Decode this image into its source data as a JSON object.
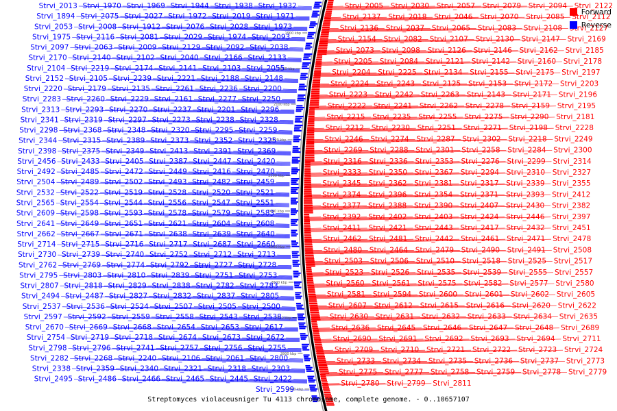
{
  "legend": {
    "forward_label": "Forward",
    "reverse_label": "Reverse",
    "forward_color": "#ff0000",
    "reverse_color": "#0000ff"
  },
  "caption": "Streptomyces violaceusniger Tu 4113 chromosome, complete genome. - 0..10657107",
  "ticks": [
    "1900 kbp",
    "2000 kbp",
    "2100 kbp",
    "2200 kbp",
    "2300 kbp",
    "2400 kbp",
    "2500 kbp",
    "2600 kbp",
    "2700 kbp",
    "2800 kbp",
    "2900 kbp"
  ],
  "forward_genes": [
    "Strvi_2005",
    "Strvi_2030",
    "Strvi_2057",
    "Strvi_2079",
    "Strvi_2094",
    "Strvi_2122",
    "Strvi_2137",
    "Strvi_2018",
    "Strvi_2046",
    "Strvi_2070",
    "Strvi_2085",
    "Strvi_2112",
    "Strvi_2136",
    "Strvi_2037",
    "Strvi_2065",
    "Strvi_2083",
    "Strvi_2108",
    "Strvi_2127",
    "Strvi_2154",
    "Strvi_2082",
    "Strvi_2107",
    "Strvi_2130",
    "Strvi_2147",
    "Strvi_2169",
    "Strvi_2073",
    "Strvi_2098",
    "Strvi_2126",
    "Strvi_2146",
    "Strvi_2162",
    "Strvi_2185",
    "Strvi_2205",
    "Strvi_2084",
    "Strvi_2121",
    "Strvi_2142",
    "Strvi_2160",
    "Strvi_2178",
    "Strvi_2204",
    "Strvi_2225",
    "Strvi_2134",
    "Strvi_2155",
    "Strvi_2175",
    "Strvi_2197",
    "Strvi_2224",
    "Strvi_2243",
    "Strvi_2125",
    "Strvi_2153",
    "Strvi_2172",
    "Strvi_2203",
    "Strvi_2223",
    "Strvi_2242",
    "Strvi_2263",
    "Strvi_2143",
    "Strvi_2171",
    "Strvi_2196",
    "Strvi_2222",
    "Strvi_2241",
    "Strvi_2262",
    "Strvi_2278",
    "Strvi_2159",
    "Strvi_2195",
    "Strvi_2215",
    "Strvi_2235",
    "Strvi_2255",
    "Strvi_2275",
    "Strvi_2290",
    "Strvi_2181",
    "Strvi_2212",
    "Strvi_2230",
    "Strvi_2251",
    "Strvi_2271",
    "Strvi_2198",
    "Strvi_2228",
    "Strvi_2246",
    "Strvi_2274",
    "Strvi_2287",
    "Strvi_2302",
    "Strvi_2218",
    "Strvi_2249",
    "Strvi_2269",
    "Strvi_2288",
    "Strvi_2301",
    "Strvi_2258",
    "Strvi_2284",
    "Strvi_2300",
    "Strvi_2316",
    "Strvi_2336",
    "Strvi_2353",
    "Strvi_2276",
    "Strvi_2299",
    "Strvi_2314",
    "Strvi_2333",
    "Strvi_2350",
    "Strvi_2367",
    "Strvi_2294",
    "Strvi_2310",
    "Strvi_2327",
    "Strvi_2345",
    "Strvi_2362",
    "Strvi_2381",
    "Strvi_2317",
    "Strvi_2339",
    "Strvi_2355",
    "Strvi_2374",
    "Strvi_2396",
    "Strvi_2354",
    "Strvi_2371",
    "Strvi_2393",
    "Strvi_2412",
    "Strvi_2377",
    "Strvi_2388",
    "Strvi_2390",
    "Strvi_2407",
    "Strvi_2430",
    "Strvi_2382",
    "Strvi_2392",
    "Strvi_2402",
    "Strvi_2403",
    "Strvi_2424",
    "Strvi_2446",
    "Strvi_2397",
    "Strvi_2411",
    "Strvi_2421",
    "Strvi_2443",
    "Strvi_2417",
    "Strvi_2432",
    "Strvi_2451",
    "Strvi_2462",
    "Strvi_2481",
    "Strvi_2442",
    "Strvi_2461",
    "Strvi_2471",
    "Strvi_2478",
    "Strvi_2480",
    "Strvi_2464",
    "Strvi_2479",
    "Strvi_2490",
    "Strvi_2491",
    "Strvi_2508",
    "Strvi_2503",
    "Strvi_2506",
    "Strvi_2510",
    "Strvi_2518",
    "Strvi_2525",
    "Strvi_2517",
    "Strvi_2523",
    "Strvi_2526",
    "Strvi_2535",
    "Strvi_2539",
    "Strvi_2555",
    "Strvi_2557",
    "Strvi_2560",
    "Strvi_2561",
    "Strvi_2575",
    "Strvi_2582",
    "Strvi_2577",
    "Strvi_2580",
    "Strvi_2581",
    "Strvi_2594",
    "Strvi_2600",
    "Strvi_2601",
    "Strvi_2602",
    "Strvi_2605",
    "Strvi_2607",
    "Strvi_2612",
    "Strvi_2615",
    "Strvi_2616",
    "Strvi_2620",
    "Strvi_2622",
    "Strvi_2630",
    "Strvi_2631",
    "Strvi_2632",
    "Strvi_2633",
    "Strvi_2634",
    "Strvi_2635",
    "Strvi_2636",
    "Strvi_2645",
    "Strvi_2646",
    "Strvi_2647",
    "Strvi_2648",
    "Strvi_2689",
    "Strvi_2690",
    "Strvi_2691",
    "Strvi_2692",
    "Strvi_2693",
    "Strvi_2694",
    "Strvi_2711",
    "Strvi_2709",
    "Strvi_2710",
    "Strvi_2721",
    "Strvi_2722",
    "Strvi_2723",
    "Strvi_2724",
    "Strvi_2733",
    "Strvi_2734",
    "Strvi_2735",
    "Strvi_2736",
    "Strvi_2737",
    "Strvi_2773",
    "Strvi_2775",
    "Strvi_2777",
    "Strvi_2758",
    "Strvi_2759",
    "Strvi_2778",
    "Strvi_2779",
    "Strvi_2780",
    "Strvi_2799",
    "Strvi_2811"
  ],
  "reverse_genes": [
    "Strvi_1932",
    "Strvi_1938",
    "Strvi_1944",
    "Strvi_1969",
    "Strvi_1970",
    "Strvi_2013",
    "Strvi_1971",
    "Strvi_2019",
    "Strvi_1972",
    "Strvi_2027",
    "Strvi_2075",
    "Strvi_1894",
    "Strvi_1973",
    "Strvi_2028",
    "Strvi_2076",
    "Strvi_1912",
    "Strvi_2008",
    "Strvi_2053",
    "Strvi_2093",
    "Strvi_1974",
    "Strvi_2029",
    "Strvi_2081",
    "Strvi_2116",
    "Strvi_1975",
    "Strvi_2038",
    "Strvi_2092",
    "Strvi_2129",
    "Strvi_2009",
    "Strvi_2063",
    "Strvi_2097",
    "Strvi_2133",
    "Strvi_2166",
    "Strvi_2040",
    "Strvi_2102",
    "Strvi_2140",
    "Strvi_2170",
    "Strvi_2055",
    "Strvi_2103",
    "Strvi_2141",
    "Strvi_2174",
    "Strvi_2219",
    "Strvi_2104",
    "Strvi_2148",
    "Strvi_2188",
    "Strvi_2221",
    "Strvi_2239",
    "Strvi_2105",
    "Strvi_2152",
    "Strvi_2200",
    "Strvi_2236",
    "Strvi_2261",
    "Strvi_2135",
    "Strvi_2179",
    "Strvi_2220",
    "Strvi_2250",
    "Strvi_2277",
    "Strvi_2161",
    "Strvi_2229",
    "Strvi_2260",
    "Strvi_2283",
    "Strvi_2296",
    "Strvi_2201",
    "Strvi_2237",
    "Strvi_2270",
    "Strvi_2293",
    "Strvi_2313",
    "Strvi_2328",
    "Strvi_2238",
    "Strvi_2273",
    "Strvi_2297",
    "Strvi_2319",
    "Strvi_2341",
    "Strvi_2259",
    "Strvi_2295",
    "Strvi_2320",
    "Strvi_2348",
    "Strvi_2368",
    "Strvi_2298",
    "Strvi_2325",
    "Strvi_2352",
    "Strvi_2373",
    "Strvi_2389",
    "Strvi_2315",
    "Strvi_2344",
    "Strvi_2369",
    "Strvi_2391",
    "Strvi_2413",
    "Strvi_2349",
    "Strvi_2375",
    "Strvi_2398",
    "Strvi_2420",
    "Strvi_2447",
    "Strvi_2387",
    "Strvi_2405",
    "Strvi_2433",
    "Strvi_2456",
    "Strvi_2470",
    "Strvi_2416",
    "Strvi_2449",
    "Strvi_2472",
    "Strvi_2485",
    "Strvi_2492",
    "Strvi_2459",
    "Strvi_2482",
    "Strvi_2493",
    "Strvi_2502",
    "Strvi_2489",
    "Strvi_2504",
    "Strvi_2521",
    "Strvi_2520",
    "Strvi_2528",
    "Strvi_2519",
    "Strvi_2522",
    "Strvi_2532",
    "Strvi_2551",
    "Strvi_2547",
    "Strvi_2556",
    "Strvi_2544",
    "Strvi_2554",
    "Strvi_2565",
    "Strvi_2583",
    "Strvi_2579",
    "Strvi_2578",
    "Strvi_2593",
    "Strvi_2598",
    "Strvi_2609",
    "Strvi_2608",
    "Strvi_2604",
    "Strvi_2621",
    "Strvi_2651",
    "Strvi_2649",
    "Strvi_2641",
    "Strvi_2640",
    "Strvi_2639",
    "Strvi_2638",
    "Strvi_2671",
    "Strvi_2667",
    "Strvi_2662",
    "Strvi_2660",
    "Strvi_2687",
    "Strvi_2717",
    "Strvi_2716",
    "Strvi_2715",
    "Strvi_2714",
    "Strvi_2713",
    "Strvi_2712",
    "Strvi_2752",
    "Strvi_2740",
    "Strvi_2739",
    "Strvi_2730",
    "Strvi_2728",
    "Strvi_2727",
    "Strvi_2792",
    "Strvi_2774",
    "Strvi_2769",
    "Strvi_2762",
    "Strvi_2753",
    "Strvi_2751",
    "Strvi_2839",
    "Strvi_2810",
    "Strvi_2803",
    "Strvi_2795",
    "Strvi_2783",
    "Strvi_2782",
    "Strvi_2838",
    "Strvi_2829",
    "Strvi_2818",
    "Strvi_2807",
    "Strvi_2805",
    "Strvi_2837",
    "Strvi_2832",
    "Strvi_2827",
    "Strvi_2487",
    "Strvi_2494",
    "Strvi_2500",
    "Strvi_2505",
    "Strvi_2507",
    "Strvi_2524",
    "Strvi_2536",
    "Strvi_2537",
    "Strvi_2538",
    "Strvi_2543",
    "Strvi_2558",
    "Strvi_2559",
    "Strvi_2592",
    "Strvi_2597",
    "Strvi_2617",
    "Strvi_2653",
    "Strvi_2654",
    "Strvi_2668",
    "Strvi_2669",
    "Strvi_2670",
    "Strvi_2672",
    "Strvi_2673",
    "Strvi_2674",
    "Strvi_2718",
    "Strvi_2719",
    "Strvi_2754",
    "Strvi_2755",
    "Strvi_2756",
    "Strvi_2757",
    "Strvi_2741",
    "Strvi_2796",
    "Strvi_2798",
    "Strvi_2800",
    "Strvi_2061",
    "Strvi_2106",
    "Strvi_2240",
    "Strvi_2268",
    "Strvi_2282",
    "Strvi_2303",
    "Strvi_2318",
    "Strvi_2321",
    "Strvi_2340",
    "Strvi_2359",
    "Strvi_2338",
    "Strvi_2422",
    "Strvi_2445",
    "Strvi_2465",
    "Strvi_2466",
    "Strvi_2486",
    "Strvi_2495",
    "Strvi_2599"
  ]
}
